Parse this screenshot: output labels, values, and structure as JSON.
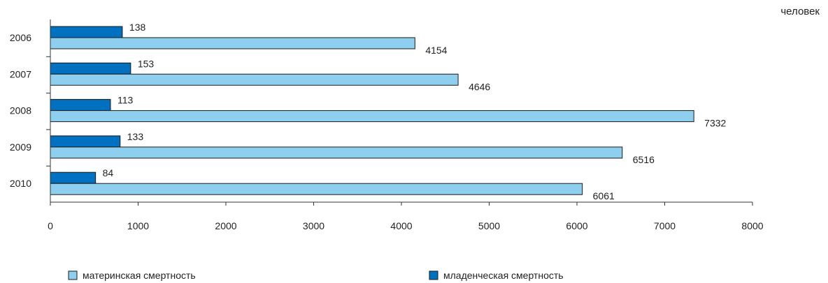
{
  "chart_data": {
    "type": "bar",
    "orientation": "horizontal",
    "unit_label": "человек",
    "categories": [
      "2006",
      "2007",
      "2008",
      "2009",
      "2010"
    ],
    "series": [
      {
        "name": "младенческая смертность",
        "values": [
          138,
          153,
          113,
          133,
          84
        ],
        "color": "#0070c0",
        "data_labels": [
          "138",
          "153",
          "113",
          "133",
          "84"
        ],
        "plotted_lengths": [
          820,
          915,
          685,
          795,
          515
        ]
      },
      {
        "name": "материнская смертность",
        "values": [
          4154,
          4646,
          7332,
          6516,
          6061
        ],
        "color": "#8ecfef",
        "data_labels": [
          "4154",
          "4646",
          "7332",
          "6516",
          "6061"
        ]
      }
    ],
    "x_ticks": [
      "0",
      "1000",
      "2000",
      "3000",
      "4000",
      "5000",
      "6000",
      "7000",
      "8000"
    ],
    "xlim": [
      0,
      8000
    ],
    "grid": false,
    "legend": {
      "position": "bottom",
      "entries": [
        "материнская смертность",
        "младенческая смертность"
      ]
    }
  }
}
